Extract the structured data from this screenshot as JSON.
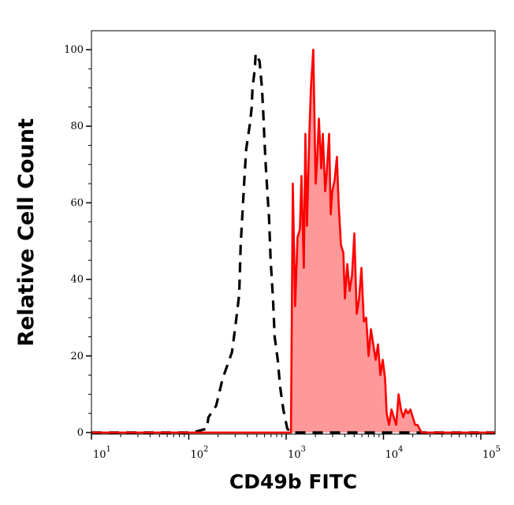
{
  "chart_data": {
    "type": "area",
    "title": "",
    "xlabel": "CD49b FITC",
    "ylabel": "Relative Cell Count",
    "xscale": "log",
    "xlim": [
      10,
      140000
    ],
    "ylim": [
      0,
      100
    ],
    "x_ticks": [
      {
        "base": "10",
        "exp": "1",
        "value": 10
      },
      {
        "base": "10",
        "exp": "2",
        "value": 100
      },
      {
        "base": "10",
        "exp": "3",
        "value": 1000
      },
      {
        "base": "10",
        "exp": "4",
        "value": 10000
      },
      {
        "base": "10",
        "exp": "5",
        "value": 100000
      }
    ],
    "y_ticks": [
      "0",
      "20",
      "40",
      "60",
      "80",
      "100"
    ],
    "grid": false,
    "legend": "none",
    "series": [
      {
        "style": "dashed-line",
        "color": "#000000",
        "x": [
          10,
          109,
          153,
          159,
          191,
          222,
          278,
          305,
          329,
          341,
          361,
          374,
          389,
          427,
          443,
          451,
          477,
          486,
          533,
          564,
          586,
          597,
          620,
          644,
          668,
          693,
          733,
          762,
          820,
          867,
          935,
          1026,
          1127,
          140000
        ],
        "y": [
          0,
          0,
          1,
          4,
          7,
          14,
          21,
          29,
          36,
          49,
          60,
          67,
          74,
          81,
          85,
          90,
          95,
          99,
          97,
          90,
          82,
          77,
          69,
          62,
          56,
          45,
          35,
          25,
          19,
          12,
          6,
          1,
          0,
          0
        ]
      },
      {
        "style": "filled-line",
        "color": "#ff0000",
        "fill": "#ff9999",
        "x": [
          10,
          1120,
          1170,
          1237,
          1309,
          1384,
          1437,
          1520,
          1578,
          1638,
          1731,
          1797,
          1900,
          2010,
          2088,
          2167,
          2292,
          2379,
          2516,
          2612,
          2762,
          2867,
          2976,
          3147,
          3327,
          3455,
          3654,
          3864,
          4011,
          4242,
          4486,
          4744,
          5017,
          5306,
          5611,
          5934,
          6275,
          6636,
          7018,
          7422,
          7849,
          8300,
          8778,
          9283,
          9817,
          10382,
          10790,
          11410,
          12070,
          12760,
          13500,
          14280,
          15100,
          15970,
          16890,
          17860,
          18890,
          19980,
          21130,
          22350,
          24560,
          140000
        ],
        "y": [
          0,
          0,
          65,
          33,
          51,
          53,
          67,
          43,
          78,
          54,
          78,
          90,
          100,
          65,
          72,
          82,
          69,
          78,
          63,
          68,
          78,
          57,
          63,
          66,
          72,
          60,
          49,
          47,
          35,
          44,
          37,
          41,
          52,
          31,
          35,
          43,
          29,
          30,
          20,
          27,
          23,
          19,
          23,
          15,
          19,
          14,
          5,
          2,
          6,
          4,
          2,
          10,
          6,
          4,
          6,
          5,
          6,
          4,
          2,
          2,
          0,
          0
        ]
      }
    ]
  }
}
